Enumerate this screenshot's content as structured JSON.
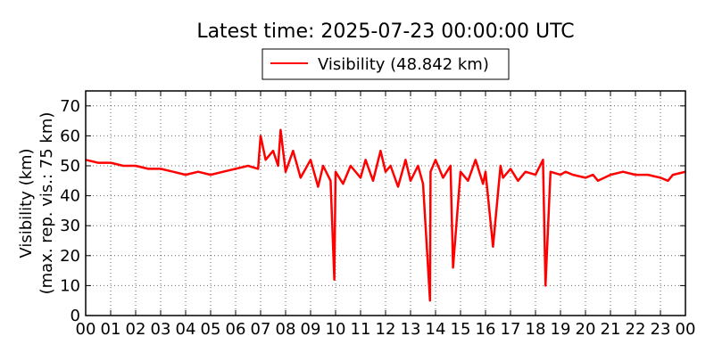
{
  "chart_data": {
    "type": "line",
    "title": "Latest time: 2025-07-23 00:00:00 UTC",
    "ylabel_line1": "Visibility (km)",
    "ylabel_line2": "(max. rep. vis.: 75 km)",
    "xlabel": "",
    "xlim": [
      0,
      24
    ],
    "ylim": [
      0,
      75
    ],
    "x_ticks": [
      0,
      1,
      2,
      3,
      4,
      5,
      6,
      7,
      8,
      9,
      10,
      11,
      12,
      13,
      14,
      15,
      16,
      17,
      18,
      19,
      20,
      21,
      22,
      23,
      24
    ],
    "x_tick_labels": [
      "00",
      "01",
      "02",
      "03",
      "04",
      "05",
      "06",
      "07",
      "08",
      "09",
      "10",
      "11",
      "12",
      "13",
      "14",
      "15",
      "16",
      "17",
      "18",
      "19",
      "20",
      "21",
      "22",
      "23",
      "00"
    ],
    "y_ticks": [
      0,
      10,
      20,
      30,
      40,
      50,
      60,
      70
    ],
    "grid": true,
    "legend_position": "top-center",
    "series": [
      {
        "name": "Visibility (48.842 km)",
        "color": "#ff0000",
        "x": [
          0.0,
          0.5,
          1.0,
          1.5,
          2.0,
          2.5,
          3.0,
          3.5,
          4.0,
          4.5,
          5.0,
          5.5,
          6.0,
          6.5,
          6.9,
          7.0,
          7.2,
          7.5,
          7.7,
          7.8,
          8.0,
          8.3,
          8.6,
          9.0,
          9.3,
          9.5,
          9.8,
          9.95,
          10.0,
          10.3,
          10.6,
          11.0,
          11.2,
          11.5,
          11.8,
          12.0,
          12.2,
          12.5,
          12.8,
          13.0,
          13.3,
          13.5,
          13.78,
          13.8,
          14.0,
          14.3,
          14.6,
          14.7,
          15.0,
          15.3,
          15.6,
          15.9,
          16.0,
          16.3,
          16.6,
          16.7,
          17.0,
          17.3,
          17.6,
          18.0,
          18.3,
          18.4,
          18.6,
          19.0,
          19.2,
          19.5,
          20.0,
          20.3,
          20.5,
          21.0,
          21.5,
          22.0,
          22.5,
          23.0,
          23.3,
          23.5,
          24.0
        ],
        "values": [
          52,
          51,
          51,
          50,
          50,
          49,
          49,
          48,
          47,
          48,
          47,
          48,
          49,
          50,
          49,
          60,
          52,
          55,
          50,
          62,
          48,
          55,
          46,
          52,
          43,
          50,
          45,
          12,
          48,
          44,
          50,
          46,
          52,
          45,
          55,
          48,
          50,
          43,
          52,
          45,
          50,
          44,
          5,
          48,
          52,
          46,
          50,
          16,
          48,
          45,
          52,
          44,
          48,
          23,
          50,
          46,
          49,
          45,
          48,
          47,
          52,
          10,
          48,
          47,
          48,
          47,
          46,
          47,
          45,
          47,
          48,
          47,
          47,
          46,
          45,
          47,
          48
        ]
      }
    ]
  }
}
